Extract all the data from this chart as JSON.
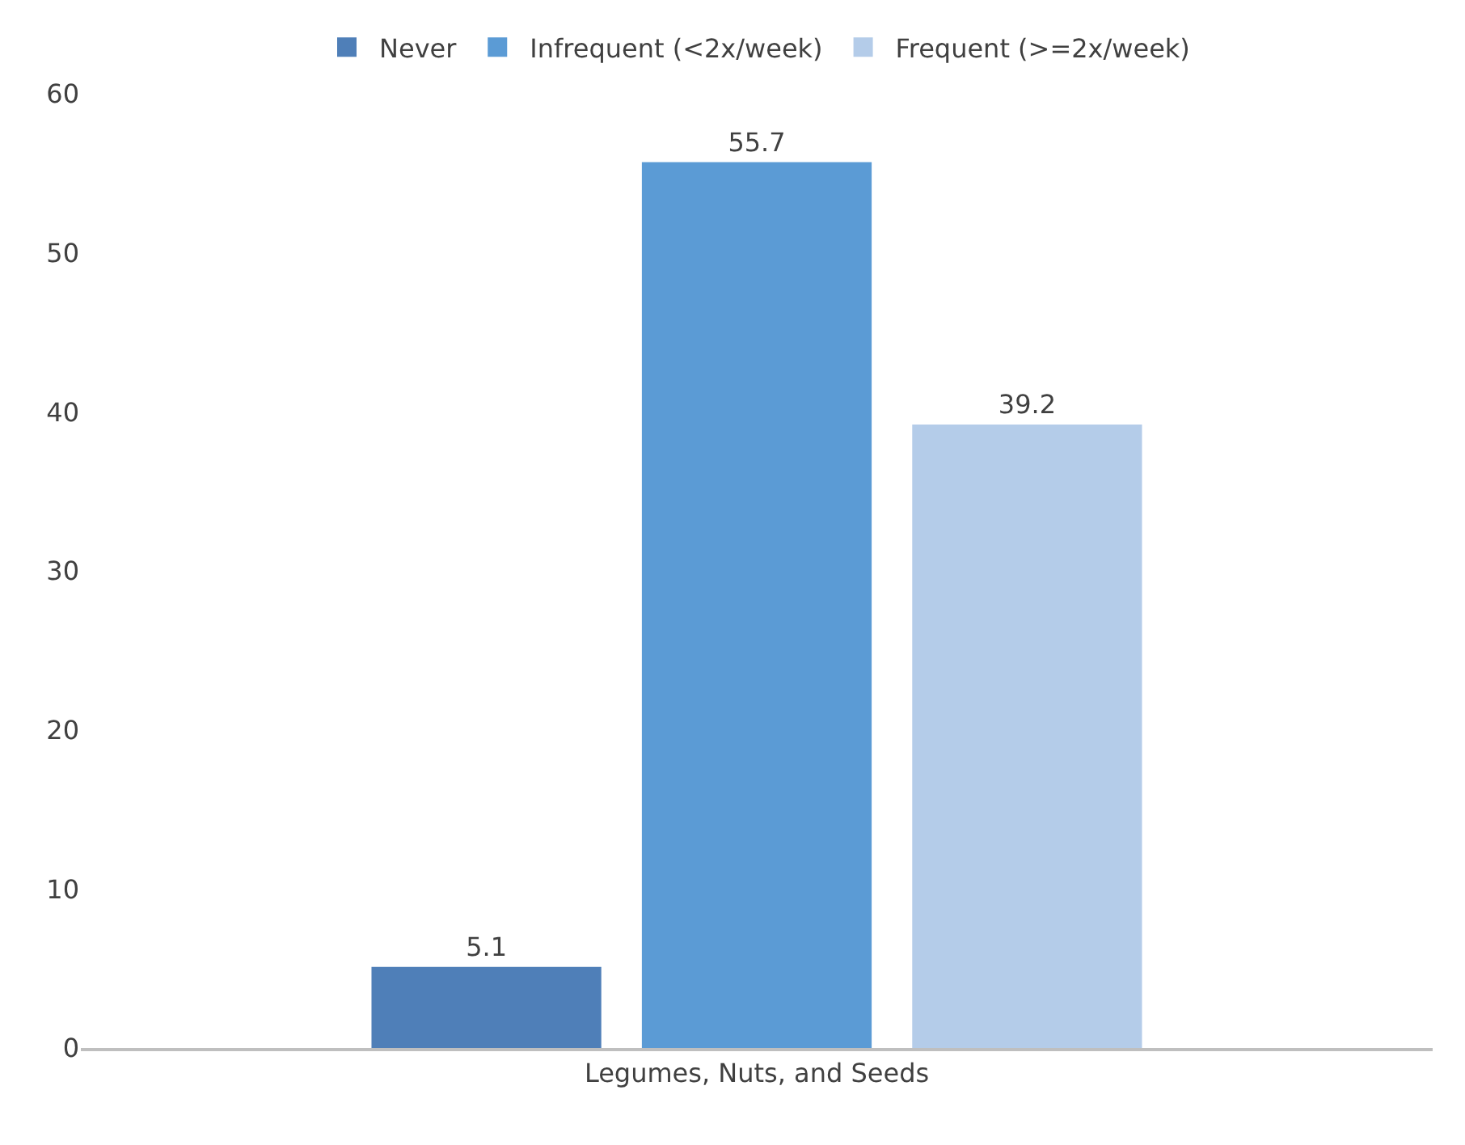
{
  "chart_data": {
    "type": "bar",
    "categories": [
      "Legumes, Nuts, and Seeds"
    ],
    "series": [
      {
        "name": "Never",
        "color": "#4f7fb8",
        "values": [
          5.1
        ]
      },
      {
        "name": "Infrequent (<2x/week)",
        "color": "#5b9bd5",
        "values": [
          55.7
        ]
      },
      {
        "name": "Frequent (>=2x/week)",
        "color": "#b4cce9",
        "values": [
          39.2
        ]
      }
    ],
    "ylim": [
      0,
      60
    ],
    "yticks": [
      0,
      10,
      20,
      30,
      40,
      50,
      60
    ],
    "data_labels": true,
    "legend": "top"
  }
}
